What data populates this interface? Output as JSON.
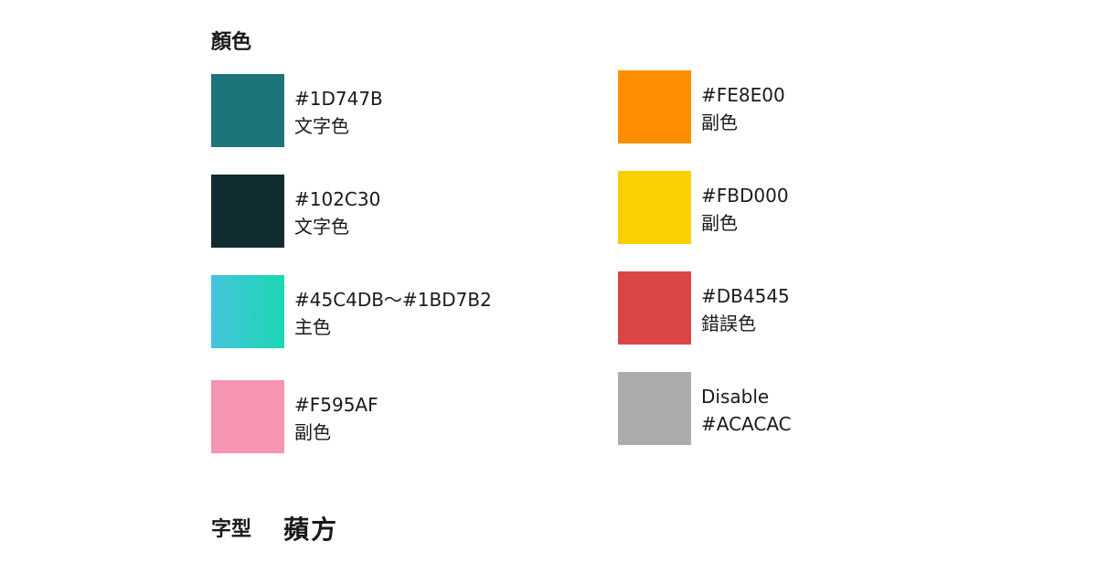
{
  "section_title": "顏色",
  "colors_left": [
    {
      "line1": "#1D747B",
      "line2": "文字色",
      "fill": "#1D747B"
    },
    {
      "line1": "#102C30",
      "line2": "文字色",
      "fill": "#102C30"
    },
    {
      "line1": "#45C4DB～#1BD7B2",
      "line2": "主色",
      "fill": "linear-gradient(90deg, #45C4DB, #1BD7B2)"
    },
    {
      "line1": "#F595AF",
      "line2": "副色",
      "fill": "#F595AF"
    }
  ],
  "colors_right": [
    {
      "line1": "#FE8E00",
      "line2": "副色",
      "fill": "#FE8E00"
    },
    {
      "line1": "#FBD000",
      "line2": "副色",
      "fill": "#FBD000"
    },
    {
      "line1": "#DB4545",
      "line2": "錯誤色",
      "fill": "#DB4545"
    },
    {
      "line1": "Disable",
      "line2": "#ACACAC",
      "fill": "#ACACAC"
    }
  ],
  "typography": {
    "label": "字型",
    "value": "蘋方"
  }
}
